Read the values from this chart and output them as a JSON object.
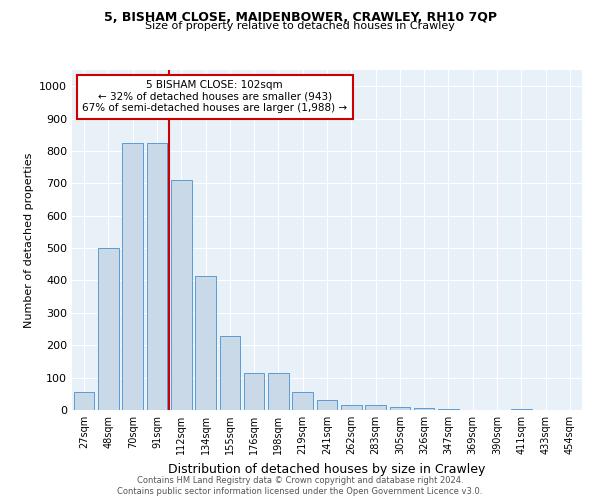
{
  "title1": "5, BISHAM CLOSE, MAIDENBOWER, CRAWLEY, RH10 7QP",
  "title2": "Size of property relative to detached houses in Crawley",
  "xlabel": "Distribution of detached houses by size in Crawley",
  "ylabel": "Number of detached properties",
  "categories": [
    "27sqm",
    "48sqm",
    "70sqm",
    "91sqm",
    "112sqm",
    "134sqm",
    "155sqm",
    "176sqm",
    "198sqm",
    "219sqm",
    "241sqm",
    "262sqm",
    "283sqm",
    "305sqm",
    "326sqm",
    "347sqm",
    "369sqm",
    "390sqm",
    "411sqm",
    "433sqm",
    "454sqm"
  ],
  "values": [
    55,
    500,
    825,
    825,
    710,
    415,
    230,
    115,
    115,
    55,
    30,
    15,
    15,
    10,
    5,
    3,
    0,
    0,
    3,
    0,
    0
  ],
  "bar_color": "#c9d9e8",
  "bar_edge_color": "#5b9bd5",
  "annotation_text": "5 BISHAM CLOSE: 102sqm\n← 32% of detached houses are smaller (943)\n67% of semi-detached houses are larger (1,988) →",
  "annotation_box_color": "#ffffff",
  "annotation_border_color": "#cc0000",
  "vline_color": "#cc0000",
  "vline_x_index": 3.5,
  "ylim": [
    0,
    1050
  ],
  "yticks": [
    0,
    100,
    200,
    300,
    400,
    500,
    600,
    700,
    800,
    900,
    1000
  ],
  "bg_color": "#e8f0f8",
  "footer1": "Contains HM Land Registry data © Crown copyright and database right 2024.",
  "footer2": "Contains public sector information licensed under the Open Government Licence v3.0."
}
